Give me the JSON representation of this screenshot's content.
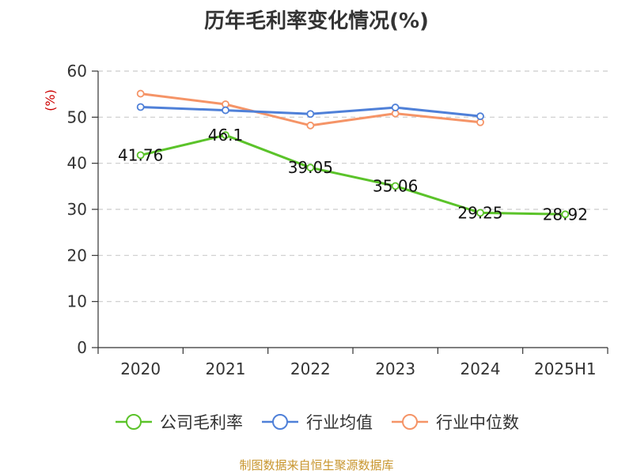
{
  "chart_data": {
    "type": "line",
    "title": "历年毛利率变化情况(%)",
    "ylabel": "(%)",
    "ylim": [
      0,
      60
    ],
    "yticks": [
      0,
      10,
      20,
      30,
      40,
      50,
      60
    ],
    "categories": [
      "2020",
      "2021",
      "2022",
      "2023",
      "2024",
      "2025H1"
    ],
    "grid": true,
    "legend_position": "bottom",
    "series": [
      {
        "name": "公司毛利率",
        "color": "#5bc32a",
        "values": [
          41.76,
          46.1,
          39.05,
          35.06,
          29.25,
          28.92
        ],
        "labels": [
          "41.76",
          "46.1",
          "39.05",
          "35.06",
          "29.25",
          "28.92"
        ]
      },
      {
        "name": "行业均值",
        "color": "#4f80d8",
        "values": [
          52.2,
          51.5,
          50.7,
          52.1,
          50.2,
          null
        ]
      },
      {
        "name": "行业中位数",
        "color": "#f59467",
        "values": [
          55.1,
          52.8,
          48.2,
          50.8,
          48.9,
          null
        ]
      }
    ]
  },
  "footer": {
    "source": "制图数据来自恒生聚源数据库"
  },
  "colors": {
    "axis": "#333333",
    "grid": "#cccccc",
    "ylabel": "#cc0000",
    "source": "#c8962e"
  }
}
